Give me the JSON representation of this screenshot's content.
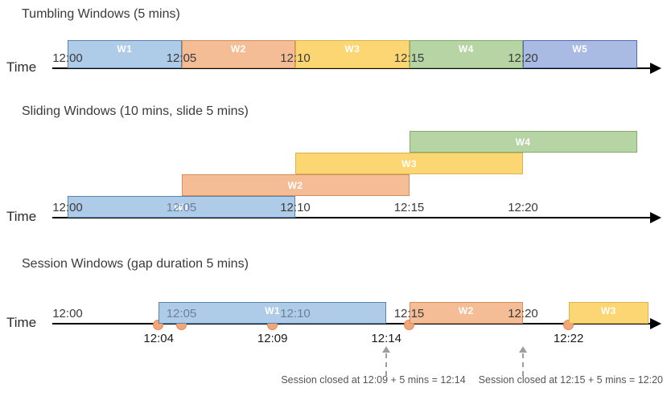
{
  "colors": {
    "blue": {
      "fill": "#AECBE8",
      "border": "#5B84AD"
    },
    "orange": {
      "fill": "#F5BD96",
      "border": "#D28E5C"
    },
    "yellow": {
      "fill": "#FBD672",
      "border": "#D8B44A"
    },
    "green": {
      "fill": "#B7D4A4",
      "border": "#85AB6C"
    },
    "periwinkle": {
      "fill": "#A9BBE3",
      "border": "#4F6DB3"
    },
    "event_dot": {
      "fill": "#F2A679",
      "border": "#DF8A55"
    },
    "axis": "#000000",
    "tick_text": "#3A3A3A",
    "muted_tick_text": "#6E8098",
    "annotation_text": "#555555",
    "annotation_arrow": "#9E9E9E"
  },
  "rows": [
    {
      "id": "tumbling",
      "title": "Tumbling Windows (5 mins)",
      "time_label": "Time",
      "ticks": [
        {
          "t": 0,
          "label": "12:00"
        },
        {
          "t": 5,
          "label": "12:05"
        },
        {
          "t": 10,
          "label": "12:10"
        },
        {
          "t": 15,
          "label": "12:15"
        },
        {
          "t": 20,
          "label": "12:20"
        }
      ],
      "windows": [
        {
          "label": "W1",
          "start": 0,
          "end": 5,
          "color": "blue",
          "lane": 0
        },
        {
          "label": "W2",
          "start": 5,
          "end": 10,
          "color": "orange",
          "lane": 0
        },
        {
          "label": "W3",
          "start": 10,
          "end": 15,
          "color": "yellow",
          "lane": 0
        },
        {
          "label": "W4",
          "start": 15,
          "end": 20,
          "color": "green",
          "lane": 0
        },
        {
          "label": "W5",
          "start": 20,
          "end": 25,
          "color": "periwinkle",
          "lane": 0
        }
      ]
    },
    {
      "id": "sliding",
      "title": "Sliding Windows (10 mins, slide 5 mins)",
      "time_label": "Time",
      "ticks": [
        {
          "t": 0,
          "label": "12:00"
        },
        {
          "t": 5,
          "label": "12:05",
          "muted": true
        },
        {
          "t": 10,
          "label": "12:10"
        },
        {
          "t": 15,
          "label": "12:15"
        },
        {
          "t": 20,
          "label": "12:20"
        }
      ],
      "windows": [
        {
          "label": "W1",
          "start": 0,
          "end": 10,
          "color": "blue",
          "lane": 0
        },
        {
          "label": "W2",
          "start": 5,
          "end": 15,
          "color": "orange",
          "lane": 1
        },
        {
          "label": "W3",
          "start": 10,
          "end": 20,
          "color": "yellow",
          "lane": 2
        },
        {
          "label": "W4",
          "start": 15,
          "end": 25,
          "color": "green",
          "lane": 3
        }
      ]
    },
    {
      "id": "session",
      "title": "Session Windows (gap duration 5 mins)",
      "time_label": "Time",
      "ticks": [
        {
          "t": 0,
          "label": "12:00"
        },
        {
          "t": 5,
          "label": "12:05",
          "muted": true
        },
        {
          "t": 10,
          "label": "12:10",
          "muted": true
        },
        {
          "t": 15,
          "label": "12:15"
        },
        {
          "t": 20,
          "label": "12:20"
        }
      ],
      "windows": [
        {
          "label": "W1",
          "start": 4,
          "end": 14,
          "color": "blue",
          "lane": 0
        },
        {
          "label": "W2",
          "start": 15,
          "end": 20,
          "color": "orange",
          "lane": 0
        },
        {
          "label": "W3",
          "start": 22,
          "end": 26,
          "color": "yellow",
          "lane": 0
        }
      ],
      "events": [
        {
          "t": 4
        },
        {
          "t": 5
        },
        {
          "t": 9
        },
        {
          "t": 15
        },
        {
          "t": 22
        }
      ],
      "below_labels": [
        {
          "t": 4,
          "label": "12:04"
        },
        {
          "t": 9,
          "label": "12:09"
        },
        {
          "t": 14,
          "label": "12:14"
        },
        {
          "t": 22,
          "label": "12:22"
        }
      ],
      "annotations": [
        {
          "t": 14,
          "text": "Session closed at 12:09 + 5 mins = 12:14"
        },
        {
          "t": 20,
          "text": "Session closed at 12:15 + 5 mins = 12:20"
        }
      ]
    }
  ]
}
